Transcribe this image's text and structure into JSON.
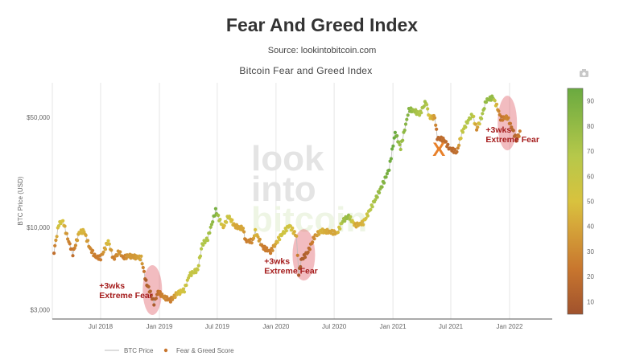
{
  "header": {
    "title": "Fear And Greed Index",
    "source": "Source: lookintobitcoin.com"
  },
  "watermark": [
    "look",
    "into",
    "bitcoin"
  ],
  "toolbar": {
    "camera_icon": "camera-icon"
  },
  "chart_data": {
    "type": "scatter",
    "title": "Bitcoin Fear and Greed Index",
    "ylabel": "BTC Price (USD)",
    "xlabel": "",
    "yscale": "log",
    "ylim": [
      2600,
      90000
    ],
    "xlim": [
      "2018-02-01",
      "2022-04-15"
    ],
    "yticks": [
      {
        "v": 50000,
        "label": "$50,000"
      },
      {
        "v": 10000,
        "label": "$10,000"
      },
      {
        "v": 3000,
        "label": "$3,000"
      }
    ],
    "xticks": [
      {
        "v": "2018-07-01",
        "label": "Jul 2018"
      },
      {
        "v": "2019-01-01",
        "label": "Jan 2019"
      },
      {
        "v": "2019-07-01",
        "label": "Jul 2019"
      },
      {
        "v": "2020-01-01",
        "label": "Jan 2020"
      },
      {
        "v": "2020-07-01",
        "label": "Jul 2020"
      },
      {
        "v": "2021-01-01",
        "label": "Jan 2021"
      },
      {
        "v": "2021-07-01",
        "label": "Jul 2021"
      },
      {
        "v": "2022-01-01",
        "label": "Jan 2022"
      }
    ],
    "grid": true,
    "colorbar": {
      "min": 5,
      "max": 95,
      "ticks": [
        10,
        20,
        30,
        40,
        50,
        60,
        70,
        80,
        90
      ],
      "colors": [
        "#a0522d",
        "#c8762e",
        "#d6a83a",
        "#d8c23e",
        "#b6c84a",
        "#6aaa40"
      ]
    },
    "legend": {
      "position": "bottom",
      "entries": [
        "BTC Price",
        "Fear & Greed Score"
      ]
    },
    "series": [
      {
        "name": "BTC Price",
        "fear_greed_name": "Fear & Greed Score",
        "points": [
          [
            "2018-02-05",
            7000,
            20
          ],
          [
            "2018-02-20",
            10500,
            55
          ],
          [
            "2018-03-05",
            11000,
            50
          ],
          [
            "2018-03-20",
            8500,
            30
          ],
          [
            "2018-04-05",
            6800,
            20
          ],
          [
            "2018-04-25",
            9300,
            45
          ],
          [
            "2018-05-10",
            9500,
            45
          ],
          [
            "2018-05-28",
            7400,
            30
          ],
          [
            "2018-06-15",
            6500,
            25
          ],
          [
            "2018-07-01",
            6400,
            25
          ],
          [
            "2018-07-25",
            8200,
            50
          ],
          [
            "2018-08-10",
            6300,
            25
          ],
          [
            "2018-08-28",
            7000,
            35
          ],
          [
            "2018-09-10",
            6400,
            25
          ],
          [
            "2018-09-25",
            6600,
            35
          ],
          [
            "2018-10-15",
            6500,
            35
          ],
          [
            "2018-11-05",
            6400,
            40
          ],
          [
            "2018-11-20",
            4500,
            10
          ],
          [
            "2018-12-01",
            4000,
            15
          ],
          [
            "2018-12-15",
            3300,
            10
          ],
          [
            "2018-12-28",
            3900,
            20
          ],
          [
            "2019-01-15",
            3600,
            30
          ],
          [
            "2019-02-05",
            3450,
            25
          ],
          [
            "2019-02-25",
            3800,
            45
          ],
          [
            "2019-03-20",
            4000,
            55
          ],
          [
            "2019-04-05",
            5000,
            60
          ],
          [
            "2019-05-01",
            5400,
            60
          ],
          [
            "2019-05-15",
            7800,
            70
          ],
          [
            "2019-06-01",
            8500,
            70
          ],
          [
            "2019-06-26",
            12800,
            90
          ],
          [
            "2019-07-10",
            11000,
            65
          ],
          [
            "2019-07-20",
            10000,
            45
          ],
          [
            "2019-08-05",
            11800,
            60
          ],
          [
            "2019-08-25",
            10200,
            40
          ],
          [
            "2019-09-20",
            9800,
            40
          ],
          [
            "2019-09-28",
            8200,
            25
          ],
          [
            "2019-10-20",
            8200,
            30
          ],
          [
            "2019-10-28",
            9400,
            50
          ],
          [
            "2019-11-20",
            7500,
            25
          ],
          [
            "2019-12-15",
            7000,
            25
          ],
          [
            "2020-01-15",
            8800,
            55
          ],
          [
            "2020-02-12",
            10300,
            55
          ],
          [
            "2020-03-05",
            8800,
            40
          ],
          [
            "2020-03-12",
            5000,
            10
          ],
          [
            "2020-03-20",
            6200,
            10
          ],
          [
            "2020-04-10",
            7000,
            15
          ],
          [
            "2020-04-30",
            8700,
            30
          ],
          [
            "2020-05-20",
            9500,
            45
          ],
          [
            "2020-06-15",
            9400,
            40
          ],
          [
            "2020-07-10",
            9200,
            40
          ],
          [
            "2020-07-28",
            11000,
            75
          ],
          [
            "2020-08-15",
            11800,
            80
          ],
          [
            "2020-09-05",
            10300,
            40
          ],
          [
            "2020-09-30",
            10700,
            45
          ],
          [
            "2020-10-20",
            12800,
            65
          ],
          [
            "2020-11-10",
            15500,
            75
          ],
          [
            "2020-12-01",
            19000,
            85
          ],
          [
            "2020-12-20",
            23500,
            92
          ],
          [
            "2021-01-08",
            40000,
            95
          ],
          [
            "2021-01-25",
            32000,
            75
          ],
          [
            "2021-02-10",
            45000,
            85
          ],
          [
            "2021-02-20",
            56000,
            85
          ],
          [
            "2021-03-10",
            55000,
            75
          ],
          [
            "2021-03-25",
            52000,
            70
          ],
          [
            "2021-04-14",
            63000,
            75
          ],
          [
            "2021-04-25",
            50000,
            50
          ],
          [
            "2021-05-12",
            50000,
            35
          ],
          [
            "2021-05-20",
            37000,
            15
          ],
          [
            "2021-06-10",
            36000,
            20
          ],
          [
            "2021-06-25",
            32000,
            15
          ],
          [
            "2021-07-20",
            30000,
            20
          ],
          [
            "2021-08-05",
            40000,
            60
          ],
          [
            "2021-08-25",
            48000,
            70
          ],
          [
            "2021-09-07",
            52000,
            70
          ],
          [
            "2021-09-20",
            42000,
            30
          ],
          [
            "2021-10-05",
            50000,
            70
          ],
          [
            "2021-10-20",
            64000,
            80
          ],
          [
            "2021-11-10",
            67000,
            80
          ],
          [
            "2021-11-25",
            57000,
            35
          ],
          [
            "2021-12-04",
            49000,
            20
          ],
          [
            "2021-12-25",
            50000,
            30
          ],
          [
            "2022-01-10",
            42000,
            15
          ],
          [
            "2022-01-22",
            36000,
            15
          ],
          [
            "2022-02-05",
            41000,
            30
          ]
        ]
      }
    ],
    "annotations": [
      {
        "text": [
          "+3wks",
          "Extreme Fear"
        ],
        "date": "2018-12-05",
        "price": 4100
      },
      {
        "text": [
          "+3wks",
          "Extreme Fear"
        ],
        "date": "2020-03-25",
        "price": 6600
      },
      {
        "text": [
          "+3wks",
          "Extreme Fear"
        ],
        "date": "2021-12-28",
        "price": 46000
      },
      {
        "text": "X",
        "date": "2021-05-25",
        "price": 28500
      }
    ]
  }
}
